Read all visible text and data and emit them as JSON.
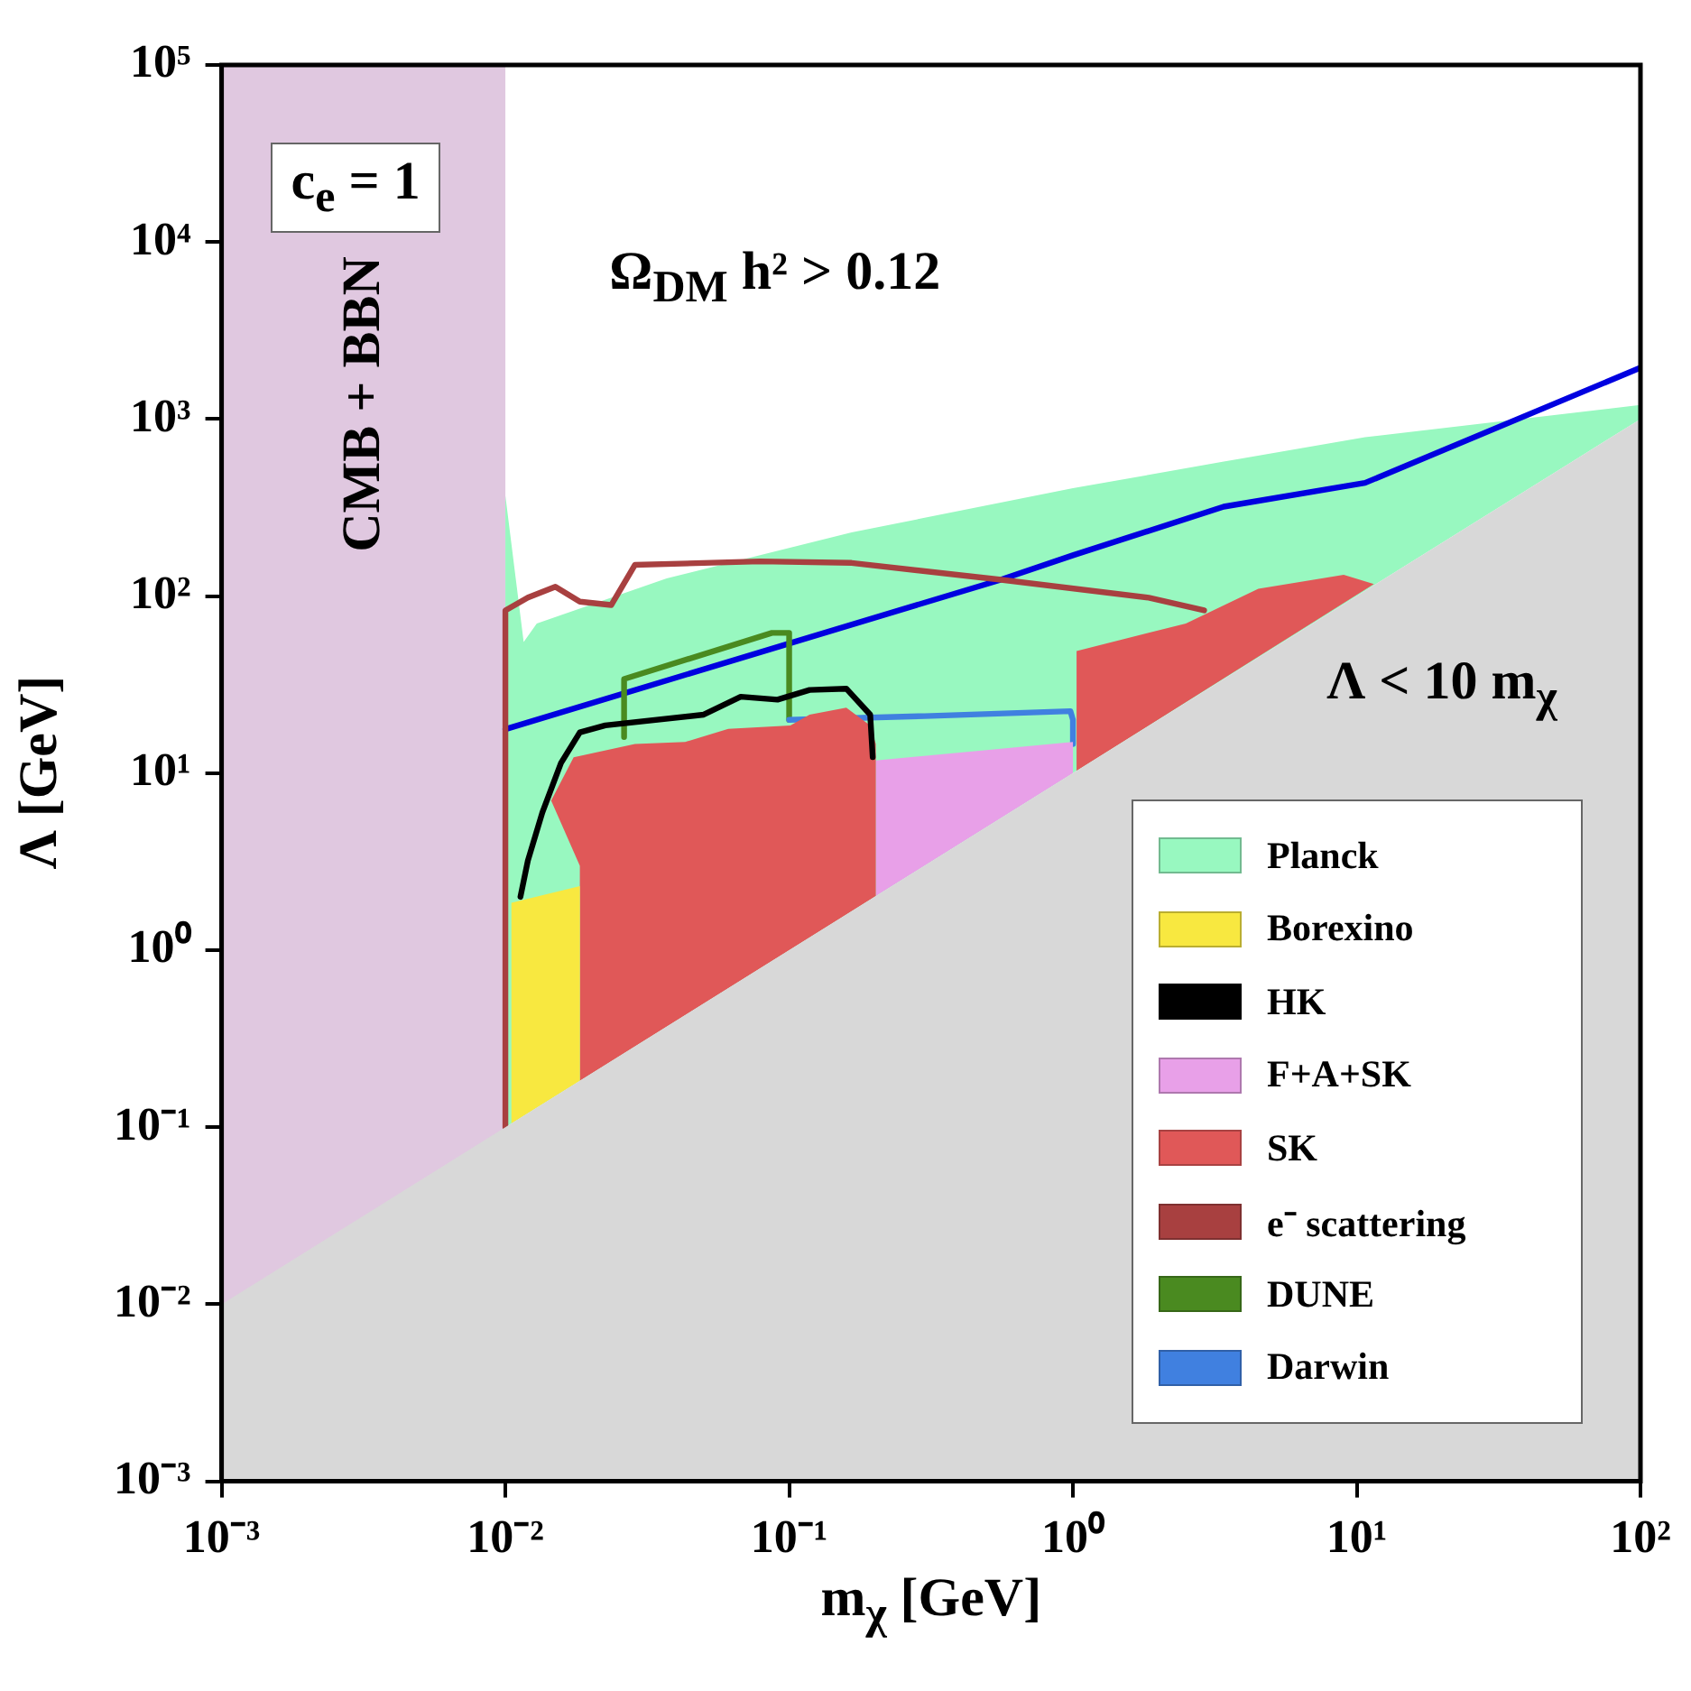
{
  "chart_data": {
    "type": "area",
    "xlabel": "m$_{χ}$ [GeV]",
    "ylabel": "Λ [GeV]",
    "log": "xy",
    "grid": false,
    "marker": "none",
    "legend": "bottom right",
    "xlim": [
      0.001,
      100
    ],
    "ylim": [
      0.001,
      100000
    ],
    "xticks": [
      {
        "value": 0.001,
        "label": "10⁻³"
      },
      {
        "value": 0.01,
        "label": "10⁻²"
      },
      {
        "value": 0.1,
        "label": "10⁻¹"
      },
      {
        "value": 1,
        "label": "10⁰"
      },
      {
        "value": 10,
        "label": "10¹"
      },
      {
        "value": 100,
        "label": "10²"
      }
    ],
    "yticks": [
      {
        "value": 0.001,
        "label": "10⁻³"
      },
      {
        "value": 0.01,
        "label": "10⁻²"
      },
      {
        "value": 0.1,
        "label": "10⁻¹"
      },
      {
        "value": 1,
        "label": "10⁰"
      },
      {
        "value": 10,
        "label": "10¹"
      },
      {
        "value": 100,
        "label": "10²"
      },
      {
        "value": 1000,
        "label": "10³"
      },
      {
        "value": 10000,
        "label": "10⁴"
      },
      {
        "value": 100000,
        "label": "10⁵"
      }
    ],
    "annotations": [
      "c$_{e}$ = 1",
      "CMB + BBN",
      "Ω$_{DM}$ h² > 0.12",
      "Λ < 10 m$_{χ}$"
    ],
    "series": [
      {
        "name": "Planck",
        "color": "#98f8c0",
        "x": [
          0.01,
          0.01,
          0.0116,
          0.0129,
          0.037,
          0.166,
          1.0,
          3.4,
          10.7,
          100,
          100
        ],
        "values": [
          0.1,
          369,
          55,
          70,
          126,
          229,
          407,
          575,
          790,
          1200,
          1000
        ]
      },
      {
        "name": "Borexino",
        "color": "#f8e840",
        "x": [
          0.0105,
          0.0105,
          0.0183,
          0.0183
        ],
        "values": [
          0.105,
          1.85,
          2.3,
          0.183
        ]
      },
      {
        "name": "HK",
        "type": "line",
        "color": "#000000",
        "x": [
          0.0113,
          0.012,
          0.0135,
          0.0157,
          0.0183,
          0.0225,
          0.05,
          0.0675,
          0.091,
          0.118,
          0.159,
          0.193,
          0.197
        ],
        "values": [
          2.0,
          3.2,
          6.0,
          11.4,
          17,
          18.6,
          21.4,
          27,
          26,
          29.5,
          30,
          21.4,
          12.3
        ]
      },
      {
        "name": "F+A+SK",
        "color": "#e8a0e8",
        "x": [
          0.202,
          0.202,
          1.0,
          1.0
        ],
        "values": [
          2.02,
          11.8,
          15,
          10
        ]
      },
      {
        "name": "SK",
        "color": "#e05858",
        "x": [
          0.0145,
          0.0174,
          0.0286,
          0.043,
          0.061,
          0.101,
          0.118,
          0.159,
          0.193,
          0.202,
          0.202,
          0.0183,
          0.0183
        ],
        "values": [
          7.0,
          12.3,
          14.6,
          15,
          17.8,
          18.6,
          21.4,
          23.4,
          18.6,
          14.6,
          2.02,
          0.183,
          3.0
        ]
      },
      {
        "name": "e⁻ scattering",
        "type": "line",
        "color": "#a84040",
        "x": [
          0.01,
          0.01,
          0.012,
          0.015,
          0.0183,
          0.0236,
          0.0286,
          0.079,
          0.166,
          0.55,
          1.85,
          2.9
        ],
        "values": [
          0.1,
          83,
          98,
          113,
          93,
          89,
          150,
          157,
          154,
          124,
          98,
          83
        ]
      },
      {
        "name": "DUNE",
        "type": "line",
        "color": "#4a8a20",
        "x": [
          0.0262,
          0.0262,
          0.087,
          0.1,
          0.1
        ],
        "values": [
          16,
          34,
          62,
          62,
          20
        ]
      },
      {
        "name": "Darwin",
        "type": "line",
        "color": "#4080e0",
        "x": [
          0.1,
          0.3,
          0.98,
          1.0,
          1.0
        ],
        "values": [
          20,
          21,
          22.4,
          20,
          14.6
        ]
      },
      {
        "color": "#e05858",
        "x": [
          1.03,
          1.03,
          2.5,
          4.5,
          9.0,
          11.5
        ],
        "values": [
          10.3,
          49,
          70,
          110,
          132,
          117
        ]
      },
      {
        "color": "#e0c8e0",
        "x": [
          0.001,
          0.001,
          0.01,
          0.01
        ],
        "values": [
          0.001,
          100000,
          100000,
          0.001
        ]
      },
      {
        "color": "#d8d8d8",
        "x": [
          0.001,
          0.001,
          100,
          100
        ],
        "values": [
          0.001,
          0.01,
          1000,
          0.001
        ]
      },
      {
        "type": "line",
        "color": "#0000e0",
        "x": [
          0.01,
          0.1,
          0.55,
          1.0,
          3.4,
          10.7,
          100
        ],
        "values": [
          17.7,
          54,
          123,
          170,
          320,
          436,
          1950
        ]
      }
    ]
  }
}
